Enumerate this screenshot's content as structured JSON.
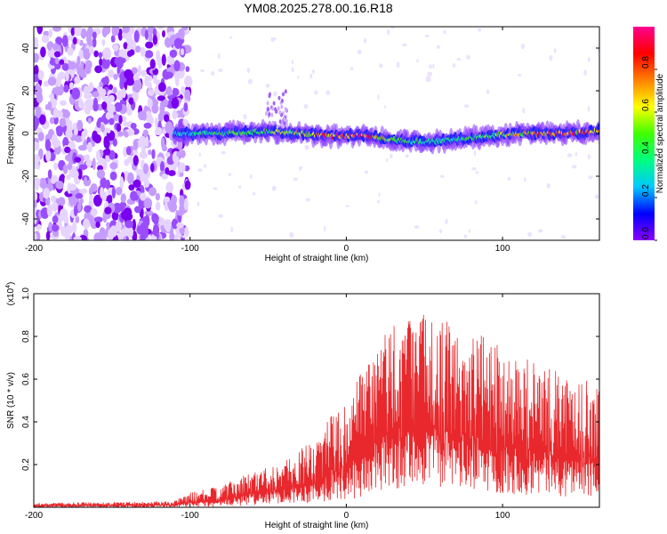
{
  "figure_title": "YM08.2025.278.00.16.R18",
  "chart_data": [
    {
      "type": "heatmap",
      "title": "YM08.2025.278.00.16.R18",
      "xlabel": "Height of straight line (km)",
      "ylabel": "Frequency (Hz)",
      "xlim": [
        -200,
        162
      ],
      "ylim": [
        -50,
        50
      ],
      "xticks": [
        -200,
        -100,
        0,
        100
      ],
      "xtick_labels": [
        "-200",
        "-100",
        "0",
        "100"
      ],
      "yticks": [
        -40,
        -20,
        0,
        20,
        40
      ],
      "ytick_labels": [
        "-40",
        "-20",
        "0",
        "20",
        "40"
      ],
      "colorbar": {
        "label": "Normalized spectral amplitude",
        "range": [
          0,
          1
        ],
        "ticks": [
          0.0,
          0.2,
          0.4,
          0.6,
          0.8
        ],
        "tick_labels": [
          "0.0",
          "0.2",
          "0.4",
          "0.6",
          "0.8"
        ],
        "colormap": [
          "#8a00ff",
          "#0000ff",
          "#00c8ff",
          "#00ff80",
          "#40ff00",
          "#ffff00",
          "#ff8000",
          "#ff0000",
          "#ff0090"
        ]
      },
      "noise_region": {
        "x_range": [
          -200,
          -105
        ],
        "max_amplitude": 0.12
      },
      "signal_track": [
        {
          "x": -110,
          "freq": 0,
          "amp": 0.3
        },
        {
          "x": -80,
          "freq": 0,
          "amp": 0.45
        },
        {
          "x": -50,
          "freq": 1,
          "amp": 0.5
        },
        {
          "x": -30,
          "freq": 0,
          "amp": 0.6
        },
        {
          "x": -10,
          "freq": -1,
          "amp": 0.85
        },
        {
          "x": 10,
          "freq": -1,
          "amp": 0.95
        },
        {
          "x": 30,
          "freq": -3,
          "amp": 0.5
        },
        {
          "x": 50,
          "freq": -4,
          "amp": 0.4
        },
        {
          "x": 80,
          "freq": -2,
          "amp": 0.45
        },
        {
          "x": 110,
          "freq": 0,
          "amp": 0.7
        },
        {
          "x": 140,
          "freq": 0,
          "amp": 0.95
        },
        {
          "x": 160,
          "freq": 1,
          "amp": 0.8
        }
      ]
    },
    {
      "type": "line",
      "xlabel": "Height of straight line (km)",
      "ylabel": "SNR (10 * v/v)",
      "y_scale_label": "(x10",
      "y_scale_exponent": "4",
      "y_scale_suffix": ")",
      "xlim": [
        -200,
        162
      ],
      "ylim": [
        0,
        1.0
      ],
      "xticks": [
        -200,
        -100,
        0,
        100
      ],
      "xtick_labels": [
        "-200",
        "-100",
        "0",
        "100"
      ],
      "yticks": [
        0.2,
        0.4,
        0.6,
        0.8,
        1.0
      ],
      "ytick_labels": [
        "0.2",
        "0.4",
        "0.6",
        "0.8",
        "1.0"
      ],
      "line_color": "#e8282c",
      "envelope": [
        {
          "x": -200,
          "min": 0.0,
          "max": 0.02
        },
        {
          "x": -110,
          "min": 0.0,
          "max": 0.03
        },
        {
          "x": -100,
          "min": 0.0,
          "max": 0.07
        },
        {
          "x": -80,
          "min": 0.0,
          "max": 0.1
        },
        {
          "x": -60,
          "min": 0.01,
          "max": 0.17
        },
        {
          "x": -40,
          "min": 0.02,
          "max": 0.22
        },
        {
          "x": -20,
          "min": 0.02,
          "max": 0.32
        },
        {
          "x": -10,
          "min": 0.03,
          "max": 0.45
        },
        {
          "x": 0,
          "min": 0.03,
          "max": 0.48
        },
        {
          "x": 15,
          "min": 0.05,
          "max": 0.72
        },
        {
          "x": 30,
          "min": 0.08,
          "max": 0.9
        },
        {
          "x": 50,
          "min": 0.1,
          "max": 0.92
        },
        {
          "x": 70,
          "min": 0.08,
          "max": 0.85
        },
        {
          "x": 90,
          "min": 0.07,
          "max": 0.8
        },
        {
          "x": 110,
          "min": 0.06,
          "max": 0.72
        },
        {
          "x": 140,
          "min": 0.05,
          "max": 0.62
        },
        {
          "x": 162,
          "min": 0.05,
          "max": 0.58
        }
      ]
    }
  ]
}
